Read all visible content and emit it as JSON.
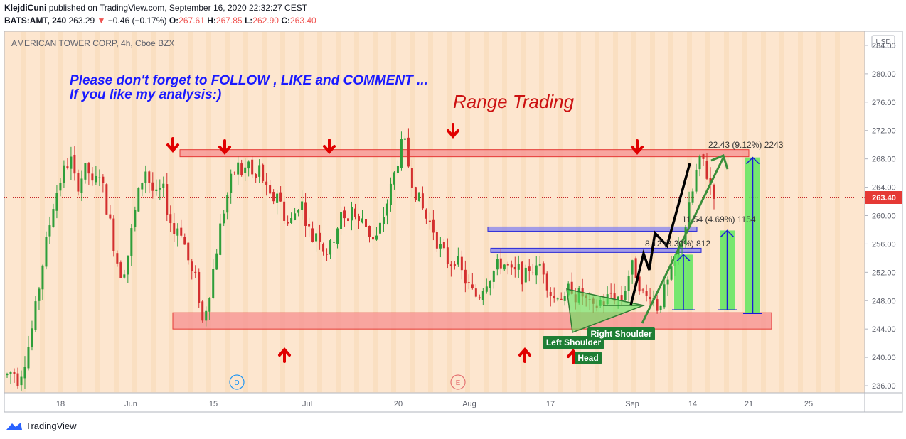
{
  "header": {
    "author": "KlejdiCuni",
    "published": "published on TradingView.com, September 16, 2020 22:32:27 CEST",
    "symbol": "BATS:AMT, 240",
    "price": "263.29",
    "change": "−0.46 (−0.17%)",
    "o_label": "O:",
    "o_value": "267.61",
    "h_label": "H:",
    "h_value": "267.85",
    "l_label": "L:",
    "l_value": "262.90",
    "c_label": "C:",
    "c_value": "263.40"
  },
  "chart_data": {
    "type": "candlestick",
    "instrument": "AMERICAN TOWER CORP, 4h, Cboe BZX",
    "currency": "USD",
    "ylim": [
      235,
      286
    ],
    "y_ticks": [
      "284.00",
      "280.00",
      "276.00",
      "272.00",
      "268.00",
      "264.00",
      "260.00",
      "256.00",
      "252.00",
      "248.00",
      "244.00",
      "240.00",
      "236.00"
    ],
    "x_ticks": [
      "18",
      "Jun",
      "15",
      "Jul",
      "20",
      "Aug",
      "17",
      "Sep",
      "14",
      "21",
      "25"
    ],
    "last_price": "263.40",
    "price_path": [
      237.5,
      238.2,
      236.8,
      239.5,
      242.5,
      247.0,
      252.5,
      257.0,
      261.5,
      264.5,
      266.5,
      268.2,
      264.0,
      265.5,
      266.8,
      263.5,
      266.5,
      262.5,
      258.5,
      254.0,
      251.5,
      254.5,
      259.5,
      263.5,
      266.8,
      264.0,
      262.5,
      264.0,
      260.5,
      257.5,
      259.0,
      255.5,
      252.0,
      250.5,
      245.0,
      248.5,
      253.0,
      258.0,
      262.0,
      265.0,
      267.2,
      265.8,
      267.5,
      264.5,
      266.8,
      263.5,
      261.8,
      263.5,
      260.5,
      258.5,
      260.2,
      262.5,
      259.5,
      256.5,
      258.2,
      255.5,
      254.8,
      257.5,
      259.8,
      259.0,
      261.5,
      258.5,
      260.0,
      257.5,
      256.0,
      258.5,
      261.5,
      264.5,
      268.0,
      270.8,
      266.5,
      263.5,
      261.5,
      259.5,
      258.5,
      256.0,
      254.5,
      253.2,
      254.2,
      252.0,
      250.5,
      249.0,
      248.5,
      250.5,
      251.5,
      252.5,
      253.5,
      252.8,
      251.5,
      252.3,
      251.0,
      253.0,
      252.0,
      253.5,
      250.5,
      248.0,
      249.5,
      247.5,
      250.5,
      248.5,
      249.0,
      247.5,
      246.5,
      248.0,
      247.8,
      249.0,
      248.6,
      248.2,
      251.5,
      253.0,
      250.5,
      248.0,
      249.5,
      247.0,
      248.5,
      250.5,
      252.5,
      255.5,
      258.5,
      262.0,
      266.5,
      268.2,
      265.0,
      263.4
    ],
    "resistance_zone": [
      268.3,
      269.3
    ],
    "support_zone": [
      244.0,
      246.3
    ],
    "mid_zone_upper": [
      257.8,
      258.4
    ],
    "mid_zone_lower": [
      254.8,
      255.4
    ],
    "annotations": {
      "banner_line1": "Please don't forget  to FOLLOW , LIKE and COMMENT ...",
      "banner_line2": "If you like my analysis:)",
      "title": "Range Trading",
      "measure_small": "8.12 (3.30%) 812",
      "measure_mid": "11.54 (4.69%) 1154",
      "measure_large": "22.43 (9.12%) 2243",
      "left_shoulder": "Left Shoulder",
      "head": "Head",
      "right_shoulder": "Right Shoulder",
      "event_d": "D",
      "event_e": "E"
    }
  },
  "branding": {
    "name": "TradingView"
  },
  "colors": {
    "bg": "#fde6cf",
    "up": "#26a69a",
    "down": "#ef5350",
    "up_candle": "#2e9e3a",
    "down_candle": "#d32f2f",
    "resistance": "#f58f8f",
    "blue_zone": "#7c7cf0",
    "measure_green": "#5ee65e",
    "arrow_red": "#e00000",
    "text_blue": "#1a1aff",
    "title_red": "#cc1111",
    "label_green": "#1e7e34"
  }
}
